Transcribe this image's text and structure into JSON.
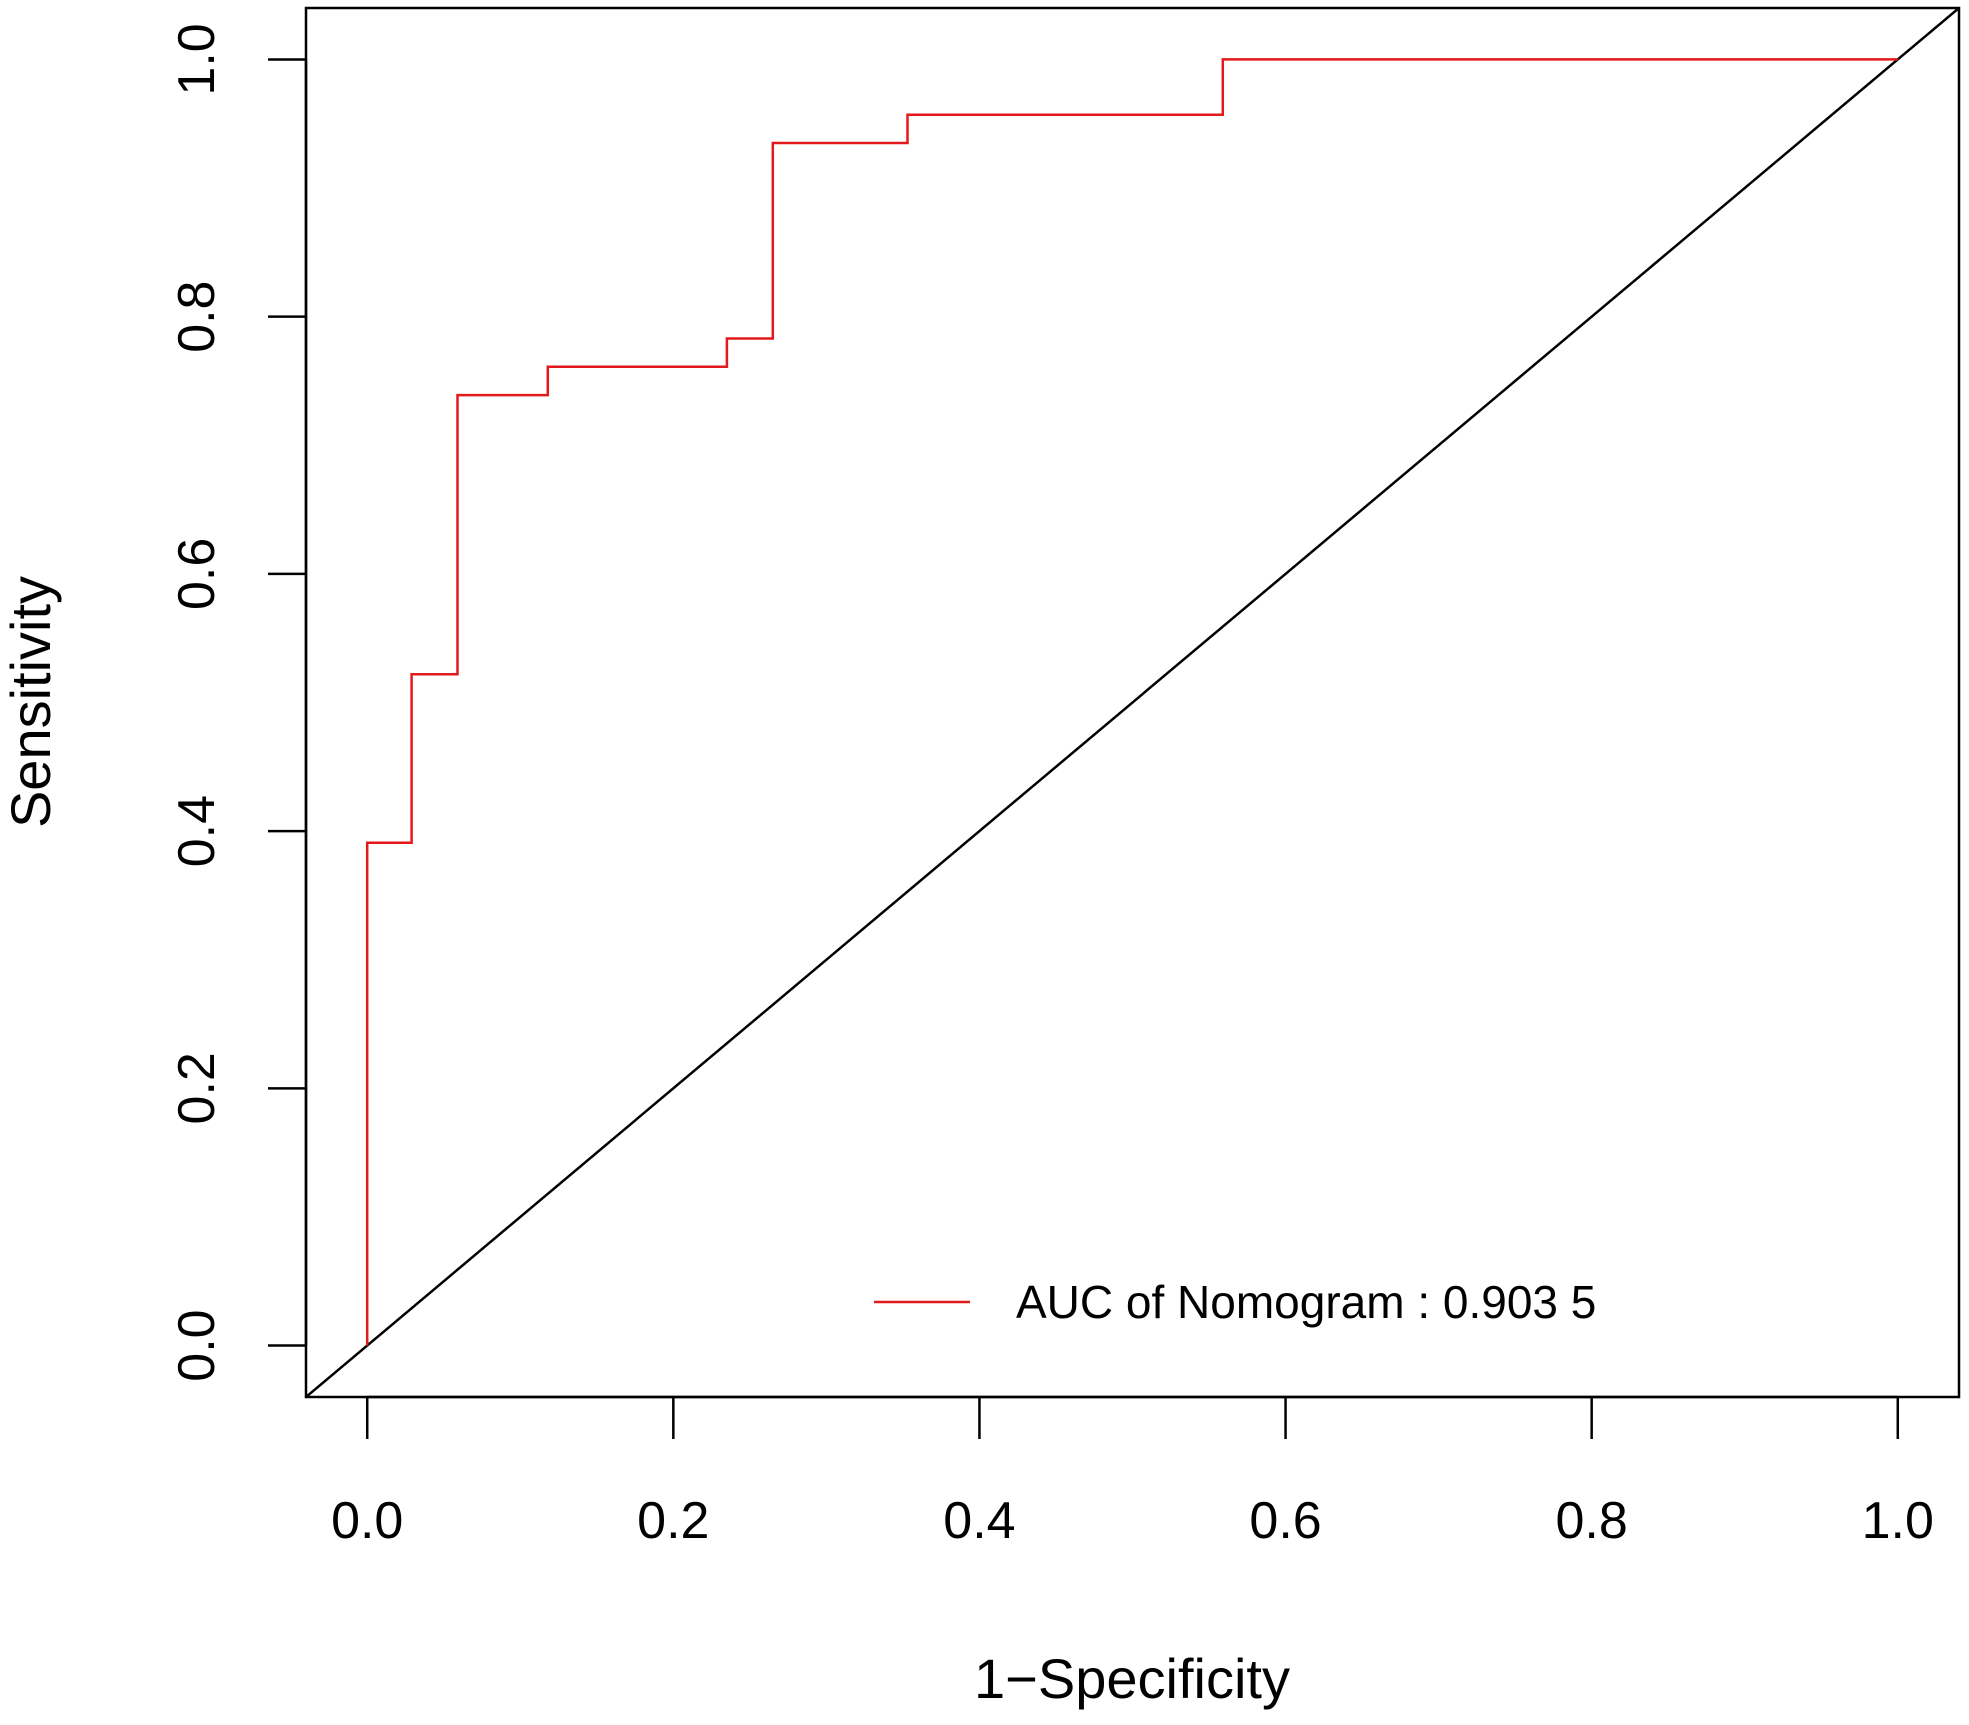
{
  "chart_data": {
    "type": "line",
    "title": "",
    "xlabel": "1−Specificity",
    "ylabel": "Sensitivity",
    "xlim": [
      -0.04,
      1.04
    ],
    "ylim": [
      -0.04,
      1.04
    ],
    "x_ticks": [
      0.0,
      0.2,
      0.4,
      0.6,
      0.8,
      1.0
    ],
    "y_ticks": [
      0.0,
      0.2,
      0.4,
      0.6,
      0.8,
      1.0
    ],
    "x_tick_labels": [
      "0.0",
      "0.2",
      "0.4",
      "0.6",
      "0.8",
      "1.0"
    ],
    "y_tick_labels": [
      "0.0",
      "0.2",
      "0.4",
      "0.6",
      "0.8",
      "1.0"
    ],
    "grid": false,
    "series": [
      {
        "name": "AUC of Nomogram : 0.903 5",
        "color": "#e31a1c",
        "step": true,
        "x": [
          0.0,
          0.0,
          0.029,
          0.029,
          0.059,
          0.059,
          0.118,
          0.118,
          0.235,
          0.235,
          0.265,
          0.265,
          0.353,
          0.353,
          0.559,
          0.559,
          1.0
        ],
        "y": [
          0.0,
          0.391,
          0.391,
          0.522,
          0.522,
          0.739,
          0.739,
          0.761,
          0.761,
          0.783,
          0.783,
          0.935,
          0.935,
          0.957,
          0.957,
          1.0,
          1.0
        ]
      }
    ],
    "reference_line": {
      "name": "diagonal",
      "color": "#000000",
      "x": [
        -0.04,
        1.04
      ],
      "y": [
        -0.04,
        1.04
      ]
    },
    "legend": {
      "position": "bottom-right",
      "entries": [
        {
          "label": "AUC of Nomogram : 0.903 5",
          "color": "#e31a1c"
        }
      ]
    }
  }
}
